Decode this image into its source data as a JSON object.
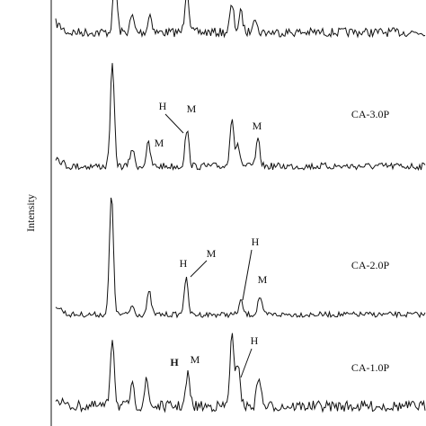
{
  "figure": {
    "y_axis_label": "Intensity",
    "patterns": [
      {
        "label": "CA-3.0P",
        "annotations": [
          "H",
          "M",
          "M",
          "M"
        ]
      },
      {
        "label": "CA-2.0P",
        "annotations": [
          "H",
          "M",
          "H",
          "M"
        ]
      },
      {
        "label": "CA-1.0P",
        "annotations": [
          "H",
          "M",
          "H"
        ]
      }
    ]
  }
}
